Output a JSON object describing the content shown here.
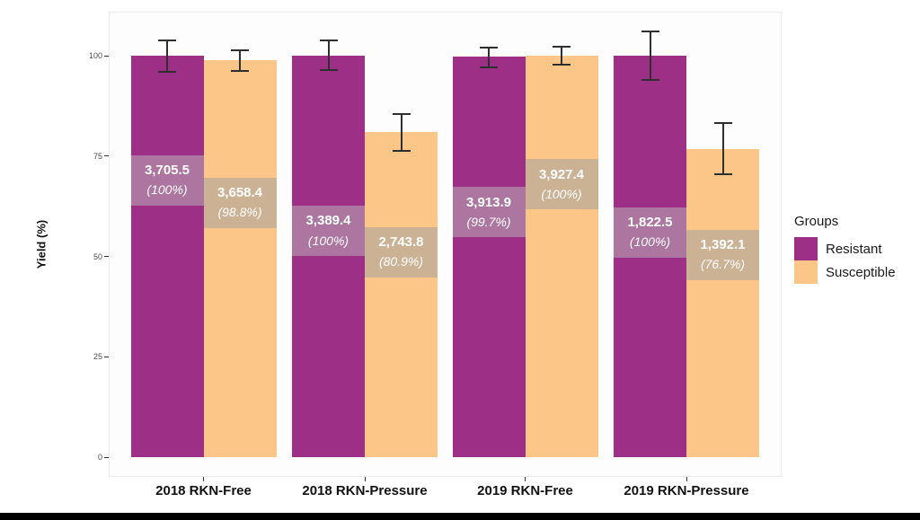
{
  "figure": {
    "background": "#ffffff",
    "bottom_bar_color": "#000000"
  },
  "chart_data": {
    "type": "bar",
    "title": "",
    "xlabel": "",
    "ylabel": "Yield (%)",
    "ylim": [
      0,
      111
    ],
    "yticks": [
      0,
      25,
      50,
      75,
      100
    ],
    "grid": false,
    "legend_position": "right",
    "categories": [
      "2018 RKN-Free",
      "2018 RKN-Pressure",
      "2019 RKN-Free",
      "2019 RKN-Pressure"
    ],
    "series": [
      {
        "name": "Resistant",
        "color": "#9E2F86",
        "label_band_color": "#AC76A1",
        "values_pct": [
          100,
          100,
          99.7,
          100
        ],
        "bar_labels": [
          {
            "value": "3,705.5",
            "pct": "(100%)"
          },
          {
            "value": "3,389.4",
            "pct": "(100%)"
          },
          {
            "value": "3,913.9",
            "pct": "(99.7%)"
          },
          {
            "value": "1,822.5",
            "pct": "(100%)"
          }
        ],
        "label_center_pct": [
          69.0,
          56.4,
          61.0,
          56.0
        ],
        "error_low": [
          96.0,
          96.4,
          97.1,
          94.0
        ],
        "error_high": [
          103.8,
          103.8,
          102.0,
          106.0
        ]
      },
      {
        "name": "Susceptible",
        "color": "#FDC689",
        "label_band_color": "#CBB295",
        "values_pct": [
          98.8,
          80.9,
          100,
          76.7
        ],
        "bar_labels": [
          {
            "value": "3,658.4",
            "pct": "(98.8%)"
          },
          {
            "value": "2,743.8",
            "pct": "(80.9%)"
          },
          {
            "value": "3,927.4",
            "pct": "(100%)"
          },
          {
            "value": "1,392.1",
            "pct": "(76.7%)"
          }
        ],
        "label_center_pct": [
          63.4,
          51.1,
          67.9,
          50.4
        ],
        "error_low": [
          96.2,
          76.3,
          97.8,
          70.5
        ],
        "error_high": [
          101.3,
          85.5,
          102.2,
          83.2
        ]
      }
    ],
    "legend": {
      "title": "Groups",
      "entries": [
        {
          "label": "Resistant",
          "color": "#9E2F86"
        },
        {
          "label": "Susceptible",
          "color": "#FDC689"
        }
      ]
    }
  }
}
